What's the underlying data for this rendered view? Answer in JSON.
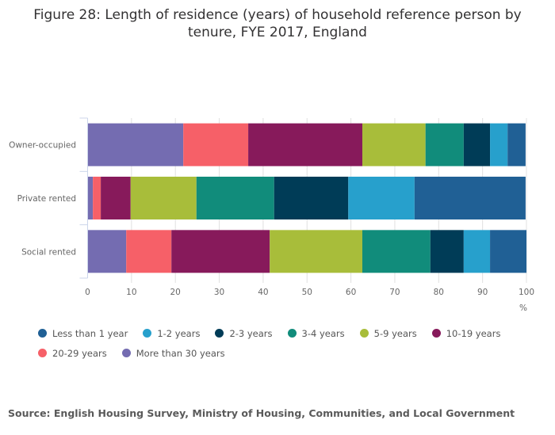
{
  "chart_data": {
    "type": "bar",
    "orientation": "horizontal",
    "stacked": true,
    "title": "Figure 28: Length of residence (years) of household reference person by tenure, FYE 2017, England",
    "title_lines": [
      "Figure 28: Length of residence (years) of household reference person by",
      "tenure, FYE 2017, England"
    ],
    "xlabel": "%",
    "ylabel": "",
    "xlim": [
      0,
      100
    ],
    "x_ticks": [
      "0",
      "10",
      "20",
      "30",
      "40",
      "50",
      "60",
      "70",
      "80",
      "90",
      "100"
    ],
    "grid": true,
    "legend_position": "bottom-left",
    "categories": [
      "Owner-occupied",
      "Private rented",
      "Social rented"
    ],
    "stack_order": [
      "More than 30 years",
      "20-29 years",
      "10-19 years",
      "5-9 years",
      "3-4 years",
      "2-3 years",
      "1-2 years",
      "Less than 1 year"
    ],
    "series": [
      {
        "name": "Less than 1 year",
        "color": "#206095",
        "values": [
          4.1,
          25.3,
          8.3
        ]
      },
      {
        "name": "1-2 years",
        "color": "#27a0cc",
        "values": [
          4.0,
          15.1,
          6.0
        ]
      },
      {
        "name": "2-3 years",
        "color": "#003c57",
        "values": [
          6.0,
          16.9,
          7.6
        ]
      },
      {
        "name": "3-4 years",
        "color": "#118c7b",
        "values": [
          8.7,
          17.7,
          15.5
        ]
      },
      {
        "name": "5-9 years",
        "color": "#a8bd3a",
        "values": [
          14.4,
          15.0,
          21.1
        ]
      },
      {
        "name": "10-19 years",
        "color": "#871a5b",
        "values": [
          26.0,
          6.8,
          22.4
        ]
      },
      {
        "name": "20-29 years",
        "color": "#f66068",
        "values": [
          14.8,
          1.8,
          10.3
        ]
      },
      {
        "name": "More than 30 years",
        "color": "#746cb1",
        "values": [
          21.8,
          1.2,
          8.8
        ]
      }
    ],
    "source": "Source: English Housing Survey, Ministry of Housing, Communities, and Local Government"
  }
}
